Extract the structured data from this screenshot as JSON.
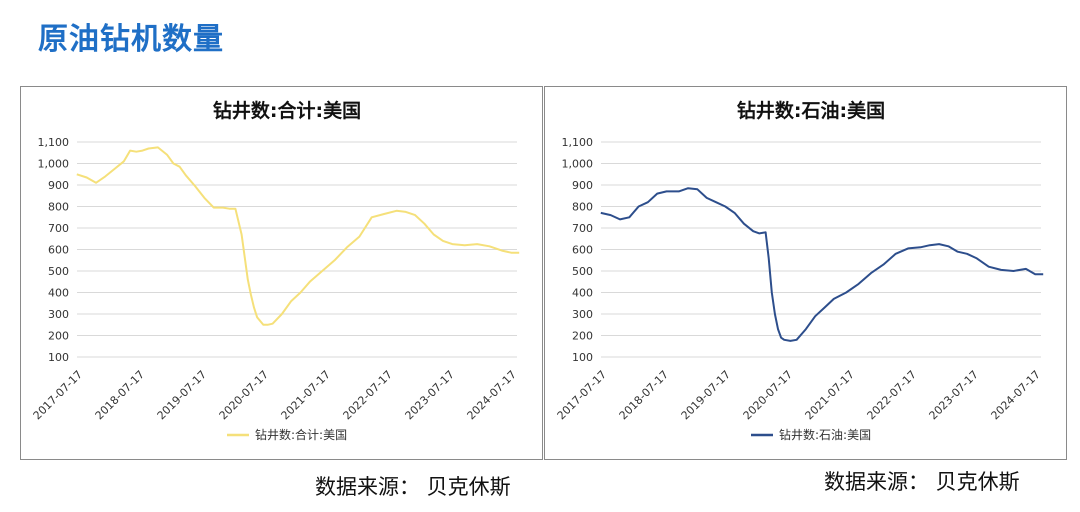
{
  "page": {
    "title": "原油钻机数量",
    "source_left": "数据来源：  贝克休斯",
    "source_right": "数据来源：  贝克休斯"
  },
  "chart_data": [
    {
      "type": "line",
      "title": "钻井数:合计:美国",
      "color": "#f5e07a",
      "ylim": [
        100,
        1100
      ],
      "y_ticks": [
        "100",
        "200",
        "300",
        "400",
        "500",
        "600",
        "700",
        "800",
        "900",
        "1,000",
        "1,100"
      ],
      "x_ticks": [
        "2017-07-17",
        "2018-07-17",
        "2019-07-17",
        "2020-07-17",
        "2021-07-17",
        "2022-07-17",
        "2023-07-17",
        "2024-07-17"
      ],
      "grid": true,
      "legend": "bottom-center",
      "series": [
        {
          "name": "钻井数:合计:美国",
          "x": [
            2017.54,
            2017.7,
            2017.85,
            2018.0,
            2018.15,
            2018.3,
            2018.4,
            2018.5,
            2018.6,
            2018.7,
            2018.85,
            2019.0,
            2019.1,
            2019.2,
            2019.3,
            2019.45,
            2019.6,
            2019.75,
            2019.9,
            2020.0,
            2020.1,
            2020.2,
            2020.3,
            2020.35,
            2020.4,
            2020.45,
            2020.55,
            2020.62,
            2020.7,
            2020.85,
            2021.0,
            2021.15,
            2021.3,
            2021.5,
            2021.7,
            2021.9,
            2022.1,
            2022.3,
            2022.5,
            2022.7,
            2022.85,
            2023.0,
            2023.15,
            2023.3,
            2023.45,
            2023.6,
            2023.8,
            2024.0,
            2024.2,
            2024.4,
            2024.55,
            2024.68
          ],
          "values": [
            950,
            935,
            910,
            940,
            975,
            1010,
            1060,
            1055,
            1060,
            1070,
            1075,
            1040,
            1000,
            985,
            945,
            895,
            840,
            795,
            795,
            790,
            790,
            670,
            460,
            390,
            330,
            285,
            250,
            250,
            255,
            300,
            360,
            400,
            450,
            500,
            550,
            610,
            660,
            750,
            765,
            780,
            775,
            760,
            720,
            670,
            640,
            625,
            620,
            625,
            615,
            595,
            585,
            585
          ]
        }
      ]
    },
    {
      "type": "line",
      "title": "钻井数:石油:美国",
      "color": "#2d4e8c",
      "ylim": [
        100,
        1100
      ],
      "y_ticks": [
        "100",
        "200",
        "300",
        "400",
        "500",
        "600",
        "700",
        "800",
        "900",
        "1,000",
        "1,100"
      ],
      "x_ticks": [
        "2017-07-17",
        "2018-07-17",
        "2019-07-17",
        "2020-07-17",
        "2021-07-17",
        "2022-07-17",
        "2023-07-17",
        "2024-07-17"
      ],
      "grid": true,
      "legend": "bottom-center",
      "series": [
        {
          "name": "钻井数:石油:美国",
          "x": [
            2017.54,
            2017.7,
            2017.85,
            2018.0,
            2018.15,
            2018.3,
            2018.45,
            2018.6,
            2018.8,
            2018.95,
            2019.1,
            2019.25,
            2019.4,
            2019.55,
            2019.7,
            2019.85,
            2020.0,
            2020.1,
            2020.2,
            2020.25,
            2020.3,
            2020.35,
            2020.4,
            2020.45,
            2020.5,
            2020.6,
            2020.7,
            2020.85,
            2021.0,
            2021.15,
            2021.3,
            2021.5,
            2021.7,
            2021.9,
            2022.1,
            2022.3,
            2022.5,
            2022.7,
            2022.85,
            2023.0,
            2023.15,
            2023.3,
            2023.45,
            2023.6,
            2023.8,
            2024.0,
            2024.2,
            2024.4,
            2024.55,
            2024.68
          ],
          "values": [
            770,
            760,
            740,
            750,
            800,
            820,
            860,
            870,
            870,
            885,
            880,
            840,
            820,
            800,
            770,
            720,
            685,
            675,
            680,
            560,
            400,
            300,
            230,
            190,
            180,
            175,
            180,
            230,
            290,
            330,
            370,
            400,
            440,
            490,
            530,
            580,
            605,
            610,
            620,
            625,
            615,
            590,
            580,
            560,
            520,
            505,
            500,
            510,
            485,
            485
          ]
        }
      ]
    }
  ]
}
